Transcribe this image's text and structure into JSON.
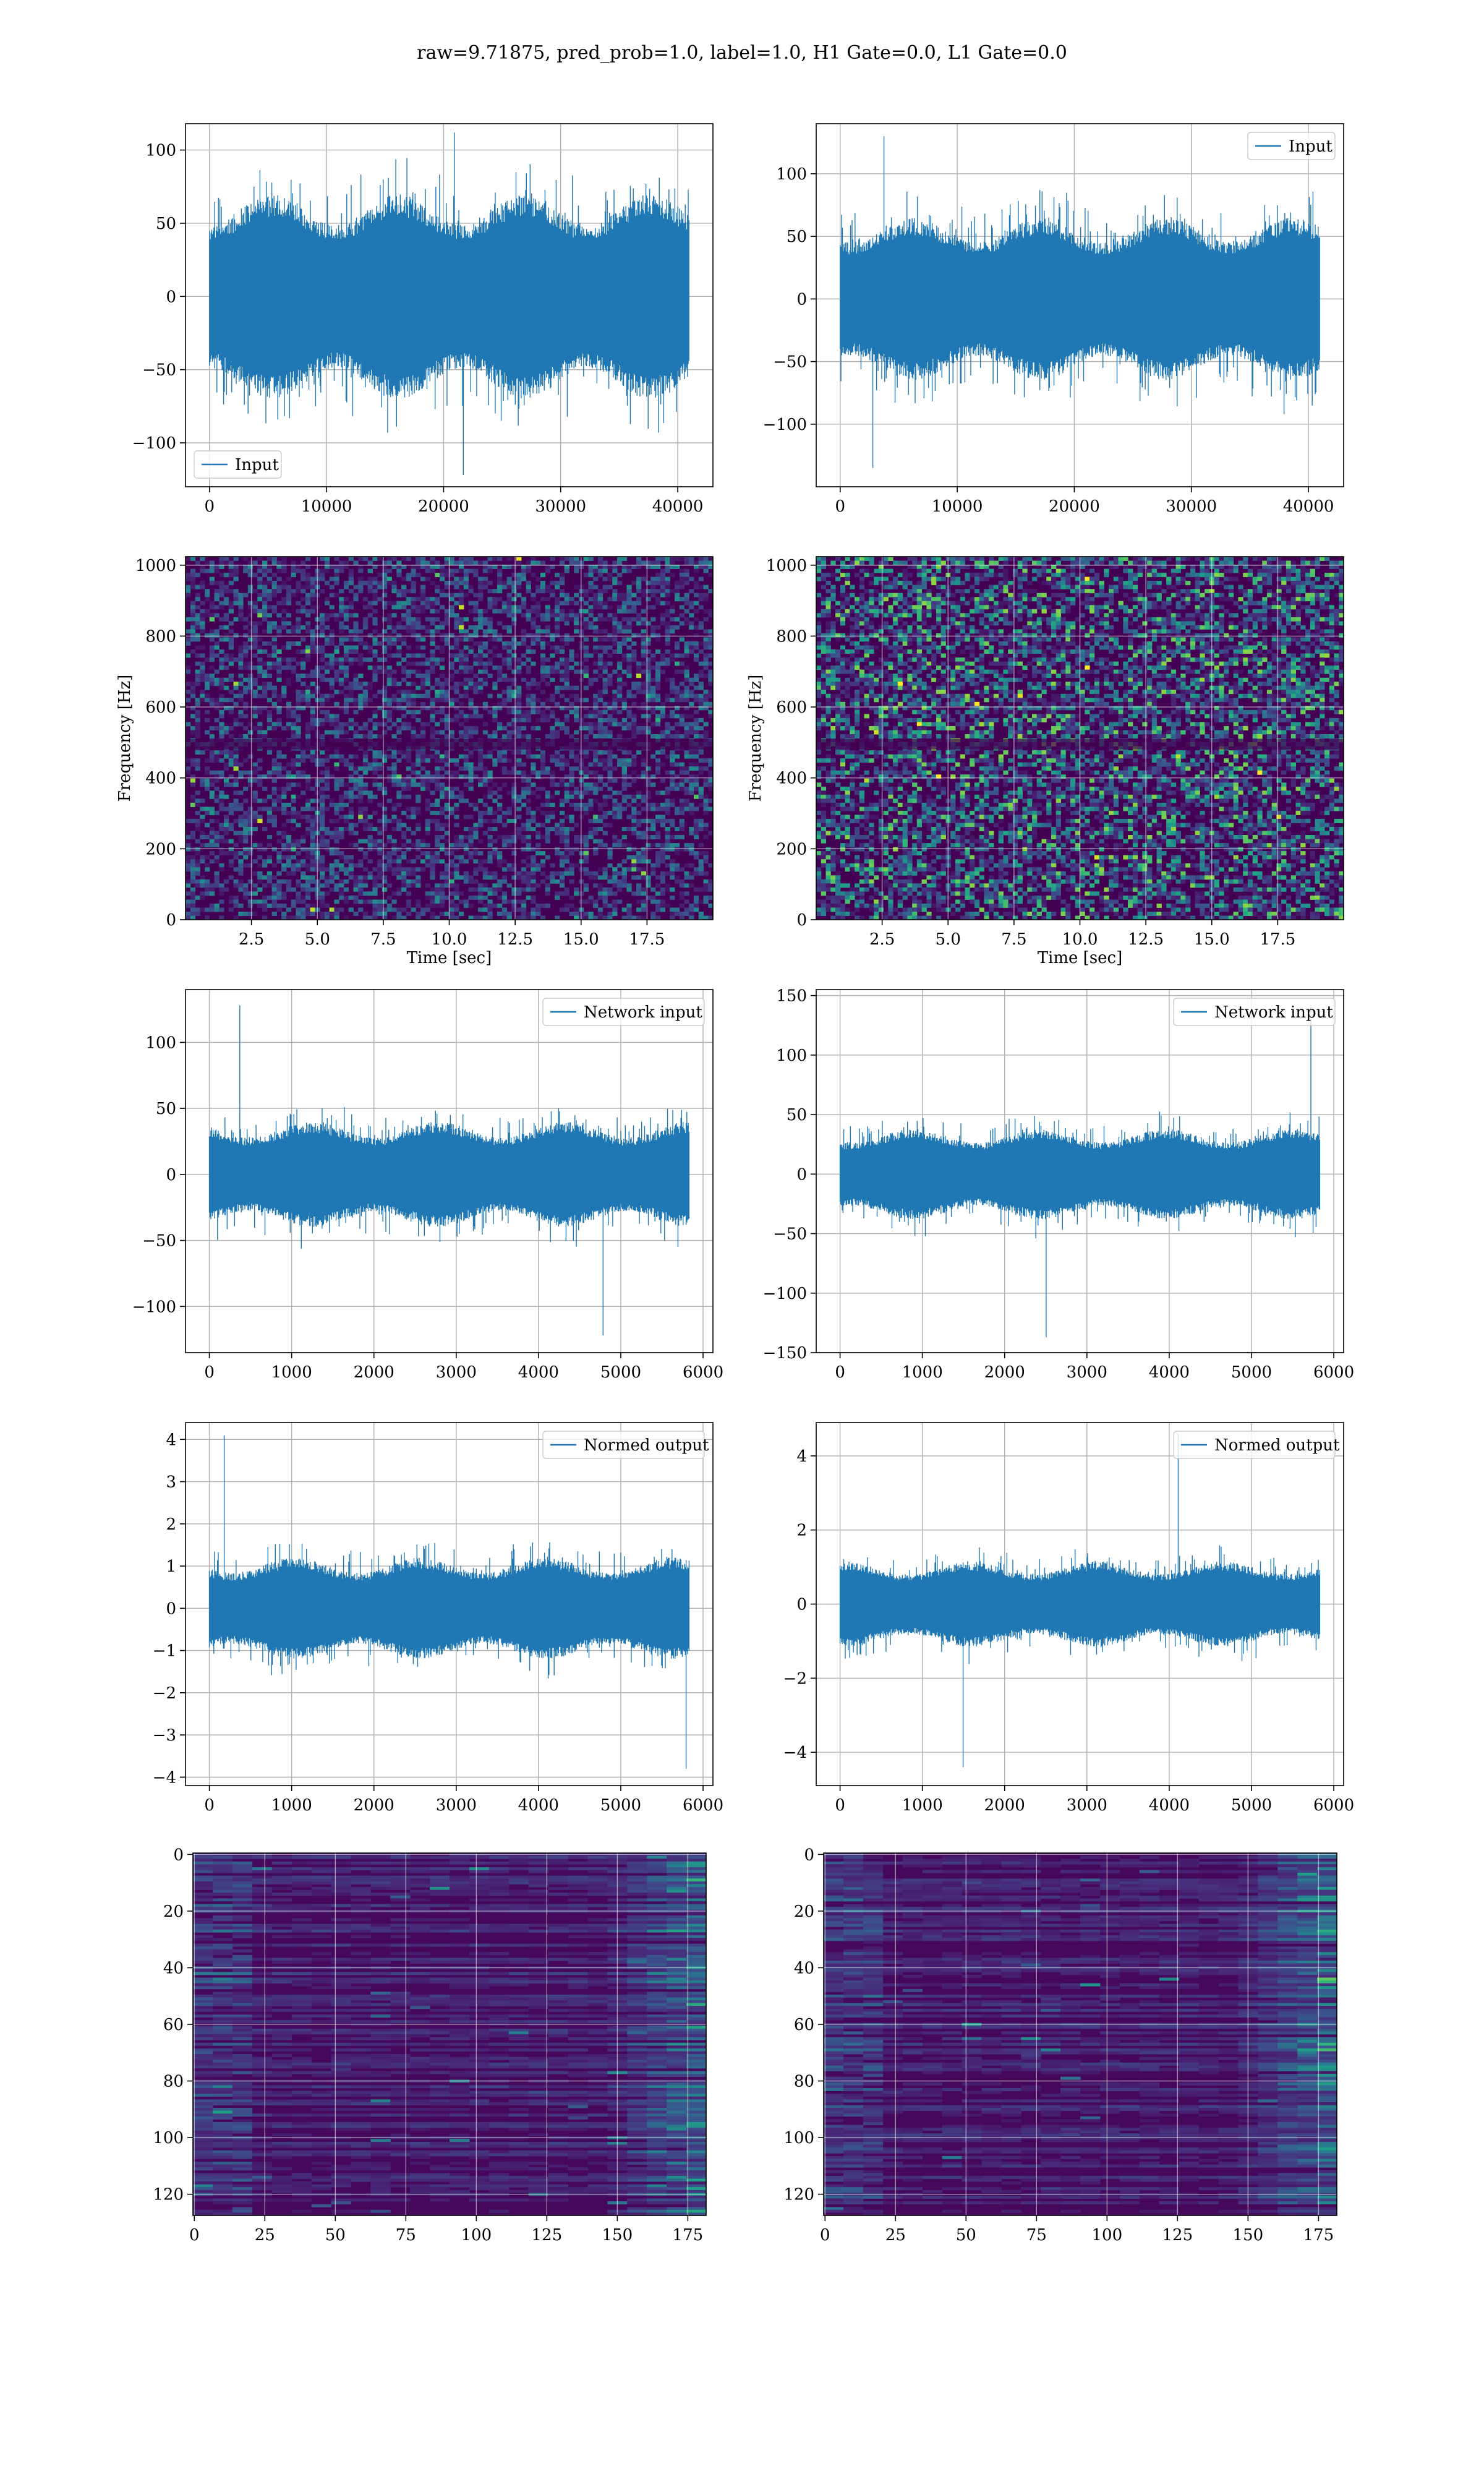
{
  "figure": {
    "suptitle": "raw=9.71875, pred_prob=1.0, label=1.0, H1 Gate=0.0, L1 Gate=0.0",
    "line_color": "#1f77b4"
  },
  "chart_data": [
    {
      "id": "p00",
      "type": "line",
      "title": "",
      "xlabel": "",
      "ylabel": "",
      "xlim": [
        -2048,
        43008
      ],
      "ylim": [
        -130,
        118
      ],
      "xticks": [
        0,
        10000,
        20000,
        30000,
        40000
      ],
      "xticklabels": [
        "0",
        "10000",
        "20000",
        "30000",
        "40000"
      ],
      "yticks": [
        -100,
        -50,
        0,
        50,
        100
      ],
      "yticklabels": [
        "−100",
        "−50",
        "0",
        "50",
        "100"
      ],
      "grid": true,
      "legend": "lower-left",
      "series": [
        {
          "name": "Input",
          "n_points": 40960,
          "x_range": [
            0,
            40960
          ],
          "typical_amplitude": 70,
          "peak_max": 112,
          "peak_min": -122,
          "seed": 11
        }
      ]
    },
    {
      "id": "p01",
      "type": "line",
      "title": "",
      "xlabel": "",
      "ylabel": "",
      "xlim": [
        -2048,
        43008
      ],
      "ylim": [
        -150,
        140
      ],
      "xticks": [
        0,
        10000,
        20000,
        30000,
        40000
      ],
      "xticklabels": [
        "0",
        "10000",
        "20000",
        "30000",
        "40000"
      ],
      "yticks": [
        -100,
        -50,
        0,
        50,
        100
      ],
      "yticklabels": [
        "−100",
        "−50",
        "0",
        "50",
        "100"
      ],
      "grid": true,
      "legend": "upper-right",
      "series": [
        {
          "name": "Input",
          "n_points": 40960,
          "x_range": [
            0,
            40960
          ],
          "typical_amplitude": 65,
          "peak_max": 130,
          "peak_min": -135,
          "seed": 23
        }
      ]
    },
    {
      "id": "p10",
      "type": "heatmap",
      "title": "",
      "xlabel": "Time [sec]",
      "ylabel": "Frequency [Hz]",
      "xlim": [
        0,
        20
      ],
      "ylim": [
        0,
        1024
      ],
      "xticks": [
        2.5,
        5.0,
        7.5,
        10.0,
        12.5,
        15.0,
        17.5
      ],
      "xticklabels": [
        "2.5",
        "5.0",
        "7.5",
        "10.0",
        "12.5",
        "15.0",
        "17.5"
      ],
      "yticks": [
        0,
        200,
        400,
        600,
        800,
        1000
      ],
      "yticklabels": [
        "0",
        "200",
        "400",
        "600",
        "800",
        "1000"
      ],
      "grid": true,
      "colormap": "viridis",
      "seed": 37,
      "intensity": 0.22
    },
    {
      "id": "p11",
      "type": "heatmap",
      "title": "",
      "xlabel": "Time [sec]",
      "ylabel": "Frequency [Hz]",
      "xlim": [
        0,
        20
      ],
      "ylim": [
        0,
        1024
      ],
      "xticks": [
        2.5,
        5.0,
        7.5,
        10.0,
        12.5,
        15.0,
        17.5
      ],
      "xticklabels": [
        "2.5",
        "5.0",
        "7.5",
        "10.0",
        "12.5",
        "15.0",
        "17.5"
      ],
      "yticks": [
        0,
        200,
        400,
        600,
        800,
        1000
      ],
      "yticklabels": [
        "0",
        "200",
        "400",
        "600",
        "800",
        "1000"
      ],
      "grid": true,
      "colormap": "viridis",
      "seed": 41,
      "intensity": 0.38
    },
    {
      "id": "p20",
      "type": "line",
      "title": "",
      "xlabel": "",
      "ylabel": "",
      "xlim": [
        -290,
        6120
      ],
      "ylim": [
        -135,
        140
      ],
      "xticks": [
        0,
        1000,
        2000,
        3000,
        4000,
        5000,
        6000
      ],
      "xticklabels": [
        "0",
        "1000",
        "2000",
        "3000",
        "4000",
        "5000",
        "6000"
      ],
      "yticks": [
        -100,
        -50,
        0,
        50,
        100
      ],
      "yticklabels": [
        "−100",
        "−50",
        "0",
        "50",
        "100"
      ],
      "grid": true,
      "legend": "upper-right",
      "series": [
        {
          "name": "Network input",
          "n_points": 5830,
          "x_range": [
            0,
            5830
          ],
          "typical_amplitude": 40,
          "peak_max": 128,
          "peak_min": -122,
          "seed": 53
        }
      ]
    },
    {
      "id": "p21",
      "type": "line",
      "title": "",
      "xlabel": "",
      "ylabel": "",
      "xlim": [
        -290,
        6120
      ],
      "ylim": [
        -150,
        155
      ],
      "xticks": [
        0,
        1000,
        2000,
        3000,
        4000,
        5000,
        6000
      ],
      "xticklabels": [
        "0",
        "1000",
        "2000",
        "3000",
        "4000",
        "5000",
        "6000"
      ],
      "yticks": [
        -150,
        -100,
        -50,
        0,
        50,
        100,
        150
      ],
      "yticklabels": [
        "−150",
        "−100",
        "−50",
        "0",
        "50",
        "100",
        "150"
      ],
      "grid": true,
      "legend": "upper-right",
      "series": [
        {
          "name": "Network input",
          "n_points": 5830,
          "x_range": [
            0,
            5830
          ],
          "typical_amplitude": 38,
          "peak_max": 142,
          "peak_min": -137,
          "seed": 67
        }
      ]
    },
    {
      "id": "p30",
      "type": "line",
      "title": "",
      "xlabel": "",
      "ylabel": "",
      "xlim": [
        -290,
        6120
      ],
      "ylim": [
        -4.2,
        4.4
      ],
      "xticks": [
        0,
        1000,
        2000,
        3000,
        4000,
        5000,
        6000
      ],
      "xticklabels": [
        "0",
        "1000",
        "2000",
        "3000",
        "4000",
        "5000",
        "6000"
      ],
      "yticks": [
        -4,
        -3,
        -2,
        -1,
        0,
        1,
        2,
        3,
        4
      ],
      "yticklabels": [
        "−4",
        "−3",
        "−2",
        "−1",
        "0",
        "1",
        "2",
        "3",
        "4"
      ],
      "grid": true,
      "legend": "upper-right",
      "series": [
        {
          "name": "Normed output",
          "n_points": 5830,
          "x_range": [
            0,
            5830
          ],
          "typical_amplitude": 1.2,
          "peak_max": 4.1,
          "peak_min": -3.8,
          "seed": 79
        }
      ]
    },
    {
      "id": "p31",
      "type": "line",
      "title": "",
      "xlabel": "",
      "ylabel": "",
      "xlim": [
        -290,
        6120
      ],
      "ylim": [
        -4.9,
        4.9
      ],
      "xticks": [
        0,
        1000,
        2000,
        3000,
        4000,
        5000,
        6000
      ],
      "xticklabels": [
        "0",
        "1000",
        "2000",
        "3000",
        "4000",
        "5000",
        "6000"
      ],
      "yticks": [
        -4,
        -2,
        0,
        2,
        4
      ],
      "yticklabels": [
        "−4",
        "−2",
        "0",
        "2",
        "4"
      ],
      "grid": true,
      "legend": "upper-right",
      "series": [
        {
          "name": "Normed output",
          "n_points": 5830,
          "x_range": [
            0,
            5830
          ],
          "typical_amplitude": 1.15,
          "peak_max": 4.6,
          "peak_min": -4.4,
          "seed": 83
        }
      ]
    },
    {
      "id": "p40",
      "type": "heatmap",
      "title": "",
      "xlabel": "",
      "ylabel": "",
      "xlim": [
        -0.5,
        181.5
      ],
      "ylim": [
        127.5,
        -0.5
      ],
      "xticks": [
        0,
        25,
        50,
        75,
        100,
        125,
        150,
        175
      ],
      "xticklabels": [
        "0",
        "25",
        "50",
        "75",
        "100",
        "125",
        "150",
        "175"
      ],
      "yticks": [
        0,
        20,
        40,
        60,
        80,
        100,
        120
      ],
      "yticklabels": [
        "0",
        "20",
        "40",
        "60",
        "80",
        "100",
        "120"
      ],
      "grid": true,
      "colormap": "viridis",
      "seed": 97,
      "rows": 128,
      "cols": 182
    },
    {
      "id": "p41",
      "type": "heatmap",
      "title": "",
      "xlabel": "",
      "ylabel": "",
      "xlim": [
        -0.5,
        181.5
      ],
      "ylim": [
        127.5,
        -0.5
      ],
      "xticks": [
        0,
        25,
        50,
        75,
        100,
        125,
        150,
        175
      ],
      "xticklabels": [
        "0",
        "25",
        "50",
        "75",
        "100",
        "125",
        "150",
        "175"
      ],
      "yticks": [
        0,
        20,
        40,
        60,
        80,
        100,
        120
      ],
      "yticklabels": [
        "0",
        "20",
        "40",
        "60",
        "80",
        "100",
        "120"
      ],
      "grid": true,
      "colormap": "viridis",
      "seed": 101,
      "rows": 128,
      "cols": 182
    }
  ]
}
